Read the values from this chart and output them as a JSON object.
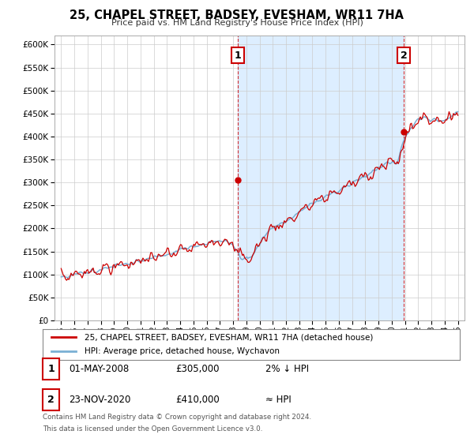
{
  "title": "25, CHAPEL STREET, BADSEY, EVESHAM, WR11 7HA",
  "subtitle": "Price paid vs. HM Land Registry's House Price Index (HPI)",
  "legend_line1": "25, CHAPEL STREET, BADSEY, EVESHAM, WR11 7HA (detached house)",
  "legend_line2": "HPI: Average price, detached house, Wychavon",
  "annotation1_label": "1",
  "annotation1_date": "01-MAY-2008",
  "annotation1_price": "£305,000",
  "annotation1_hpi": "2% ↓ HPI",
  "annotation2_label": "2",
  "annotation2_date": "23-NOV-2020",
  "annotation2_price": "£410,000",
  "annotation2_hpi": "≈ HPI",
  "footnote1": "Contains HM Land Registry data © Crown copyright and database right 2024.",
  "footnote2": "This data is licensed under the Open Government Licence v3.0.",
  "sale1_year": 2008.37,
  "sale1_price": 305000,
  "sale2_year": 2020.9,
  "sale2_price": 410000,
  "price_line_color": "#cc0000",
  "hpi_line_color": "#7ab0d4",
  "shade_color": "#ddeeff",
  "background_color": "#ffffff",
  "grid_color": "#cccccc",
  "ylim": [
    0,
    620000
  ],
  "yticks": [
    0,
    50000,
    100000,
    150000,
    200000,
    250000,
    300000,
    350000,
    400000,
    450000,
    500000,
    550000,
    600000
  ],
  "xlim_start": 1994.5,
  "xlim_end": 2025.5
}
